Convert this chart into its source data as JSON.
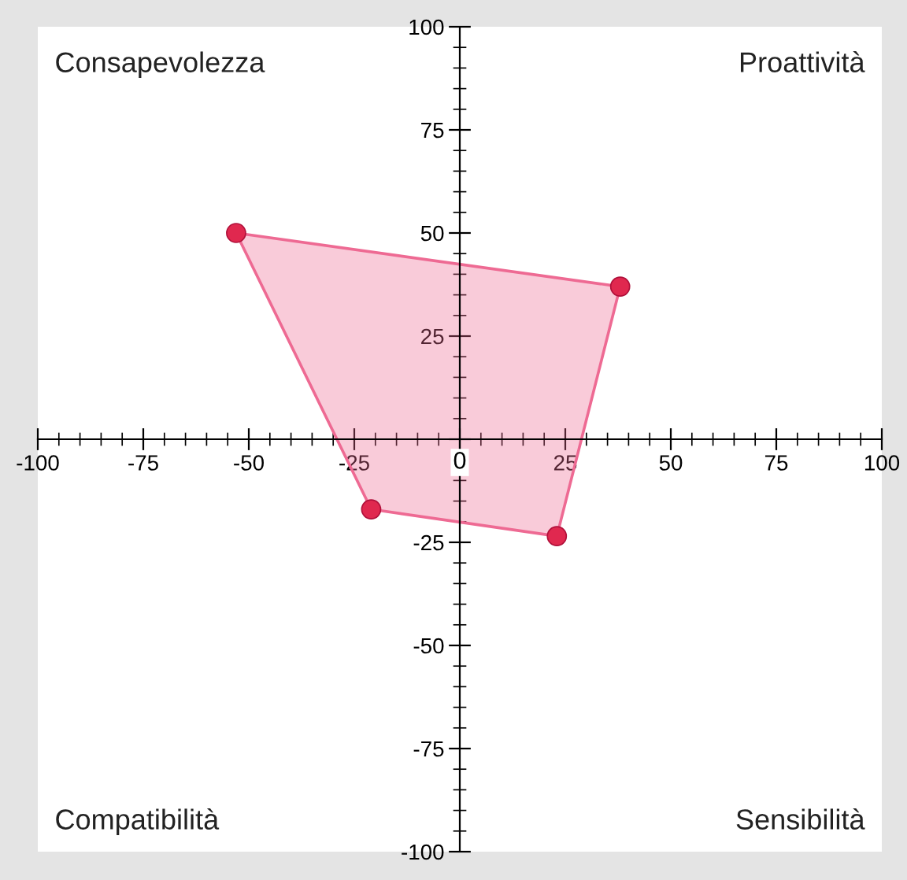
{
  "chart_data": {
    "type": "scatter",
    "x": [
      -53,
      38,
      23,
      -21
    ],
    "series": [
      {
        "type": "area",
        "color": "#ee6a93",
        "values": [
          50,
          37,
          -23.5,
          -17
        ]
      },
      {
        "color": "#e0284f",
        "marker": "circle",
        "values": [
          50,
          37,
          -23.5,
          -17
        ]
      }
    ],
    "xlim": [
      -100,
      100
    ],
    "ylim": [
      -100,
      100
    ],
    "xticks": [
      -100,
      -75,
      -50,
      -25,
      0,
      25,
      50,
      75,
      100
    ],
    "yticks": [
      -100,
      -75,
      -50,
      -25,
      {
        "value": 0,
        "label": null
      },
      25,
      50,
      75,
      100
    ],
    "annotations": [
      "Consapevolezza",
      "Proattività",
      "Compatibilità",
      "Sensibilità"
    ],
    "grid": false,
    "legend": false
  }
}
